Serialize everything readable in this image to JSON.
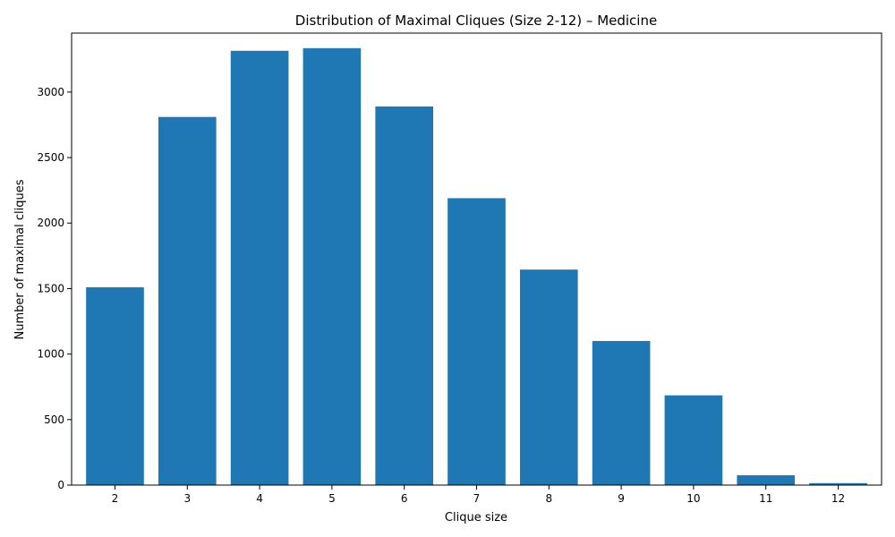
{
  "chart_data": {
    "type": "bar",
    "title": "Distribution of Maximal Cliques (Size 2-12) – Medicine",
    "xlabel": "Clique size",
    "ylabel": "Number of maximal cliques",
    "categories": [
      "2",
      "3",
      "4",
      "5",
      "6",
      "7",
      "8",
      "9",
      "10",
      "11",
      "12"
    ],
    "values": [
      1510,
      2810,
      3315,
      3335,
      2890,
      2190,
      1645,
      1100,
      685,
      75,
      15
    ],
    "ylim": [
      0,
      3450
    ],
    "yticks": [
      0,
      500,
      1000,
      1500,
      2000,
      2500,
      3000
    ],
    "grid": false,
    "bar_color": "#1f77b4"
  }
}
